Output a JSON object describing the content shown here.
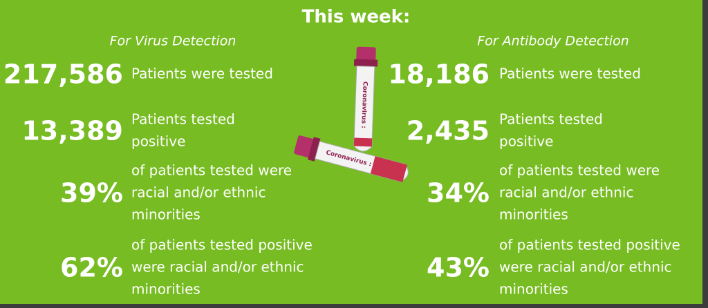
{
  "header": {
    "title": "This week:"
  },
  "columns": [
    {
      "subtitle": "For Virus Detection",
      "stats": [
        {
          "value": "217,586",
          "lines": [
            "Patients were tested"
          ]
        },
        {
          "value": "13,389",
          "lines": [
            "Patients tested",
            "positive"
          ]
        },
        {
          "value": "39%",
          "lines": [
            "of patients tested were",
            "racial and/or ethnic",
            "minorities"
          ]
        },
        {
          "value": "62%",
          "lines": [
            "of patients tested positive",
            "were racial and/or ethnic",
            "minorities"
          ]
        }
      ]
    },
    {
      "subtitle": "For Antibody Detection",
      "stats": [
        {
          "value": "18,186",
          "lines": [
            "Patients were tested"
          ]
        },
        {
          "value": "2,435",
          "lines": [
            "Patients tested",
            "positive"
          ]
        },
        {
          "value": "34%",
          "lines": [
            "of patients tested were",
            "racial and/or ethnic",
            "minorities"
          ]
        },
        {
          "value": "43%",
          "lines": [
            "of patients tested positive",
            "were racial and/or ethnic",
            "minorities"
          ]
        }
      ]
    }
  ],
  "illustration": {
    "tube_labels": [
      "Coronavirus :",
      "Coronavirus :"
    ]
  }
}
